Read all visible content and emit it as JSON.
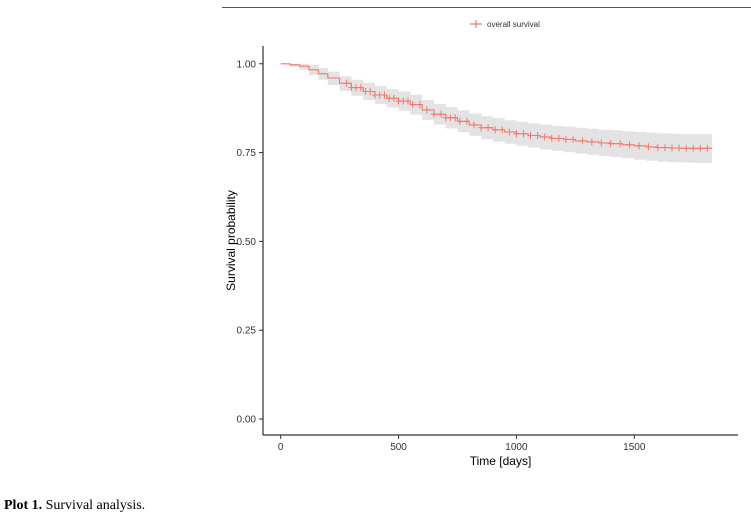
{
  "chart_data": {
    "type": "line",
    "title": "",
    "xlabel": "Time [days]",
    "ylabel": "Survival probability",
    "xlim": [
      -75,
      1940
    ],
    "ylim": [
      -0.045,
      1.05
    ],
    "x_ticks": [
      0,
      500,
      1000,
      1500
    ],
    "y_ticks": [
      0.0,
      0.25,
      0.5,
      0.75,
      1.0
    ],
    "y_tick_labels": [
      "0.00",
      "0.25",
      "0.50",
      "0.75",
      "1.00"
    ],
    "grid": false,
    "legend": {
      "position": "top",
      "entries": [
        "overall survival"
      ]
    },
    "series": [
      {
        "name": "overall survival",
        "color": "#F8766D",
        "ci_color": "#D9D9D9",
        "x": [
          0,
          40,
          80,
          120,
          160,
          200,
          250,
          300,
          350,
          400,
          450,
          500,
          550,
          600,
          650,
          700,
          750,
          800,
          850,
          900,
          950,
          1000,
          1050,
          1100,
          1150,
          1200,
          1250,
          1300,
          1350,
          1400,
          1450,
          1500,
          1550,
          1600,
          1650,
          1700,
          1750,
          1800,
          1830
        ],
        "y": [
          1.0,
          0.997,
          0.993,
          0.983,
          0.972,
          0.96,
          0.945,
          0.933,
          0.922,
          0.912,
          0.903,
          0.895,
          0.885,
          0.87,
          0.858,
          0.848,
          0.838,
          0.828,
          0.82,
          0.814,
          0.808,
          0.803,
          0.798,
          0.794,
          0.79,
          0.787,
          0.783,
          0.78,
          0.777,
          0.775,
          0.772,
          0.769,
          0.766,
          0.764,
          0.763,
          0.762,
          0.762,
          0.762,
          0.762
        ],
        "ci_lower": [
          1.0,
          0.992,
          0.983,
          0.968,
          0.955,
          0.94,
          0.924,
          0.91,
          0.898,
          0.887,
          0.877,
          0.868,
          0.857,
          0.842,
          0.829,
          0.818,
          0.807,
          0.797,
          0.788,
          0.781,
          0.775,
          0.769,
          0.764,
          0.759,
          0.755,
          0.751,
          0.747,
          0.744,
          0.74,
          0.737,
          0.734,
          0.73,
          0.727,
          0.724,
          0.723,
          0.722,
          0.721,
          0.721,
          0.721
        ],
        "ci_upper": [
          1.0,
          1.0,
          1.0,
          0.997,
          0.988,
          0.978,
          0.965,
          0.955,
          0.946,
          0.937,
          0.929,
          0.922,
          0.913,
          0.898,
          0.887,
          0.878,
          0.869,
          0.86,
          0.852,
          0.847,
          0.841,
          0.837,
          0.832,
          0.829,
          0.825,
          0.823,
          0.82,
          0.817,
          0.814,
          0.813,
          0.81,
          0.808,
          0.806,
          0.804,
          0.803,
          0.802,
          0.802,
          0.802,
          0.802
        ],
        "censored_x": [
          280,
          300,
          320,
          340,
          360,
          380,
          400,
          420,
          440,
          460,
          480,
          500,
          520,
          540,
          560,
          590,
          620,
          650,
          680,
          700,
          720,
          740,
          760,
          790,
          820,
          850,
          880,
          910,
          940,
          970,
          1000,
          1030,
          1060,
          1090,
          1120,
          1150,
          1180,
          1210,
          1240,
          1280,
          1320,
          1360,
          1400,
          1440,
          1480,
          1520,
          1560,
          1600,
          1630,
          1660,
          1690,
          1720,
          1750,
          1780,
          1810
        ]
      }
    ]
  },
  "caption": {
    "label": "Plot 1.",
    "text": "Survival analysis."
  }
}
